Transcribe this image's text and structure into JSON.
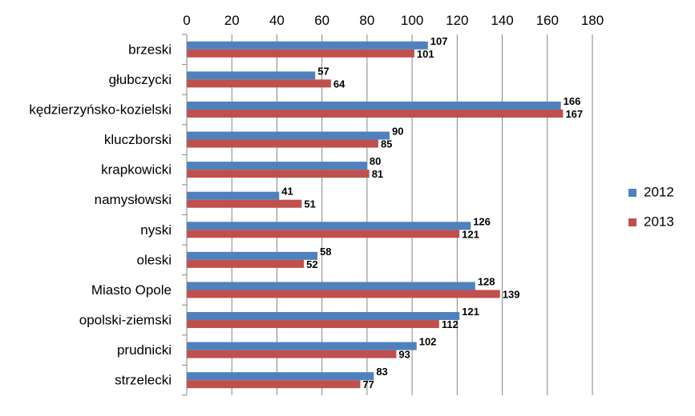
{
  "chart_data": {
    "type": "bar",
    "orientation": "horizontal",
    "categories": [
      "brzeski",
      "głubczycki",
      "kędzierzyńsko-kozielski",
      "kluczborski",
      "krapkowicki",
      "namysłowski",
      "nyski",
      "oleski",
      "Miasto Opole",
      "opolski-ziemski",
      "prudnicki",
      "strzelecki"
    ],
    "series": [
      {
        "name": "2012",
        "color": "#4F81BD",
        "values": [
          107,
          57,
          166,
          90,
          80,
          41,
          126,
          58,
          128,
          121,
          102,
          83
        ]
      },
      {
        "name": "2013",
        "color": "#C0504D",
        "values": [
          101,
          64,
          167,
          85,
          81,
          51,
          121,
          52,
          139,
          112,
          93,
          77
        ]
      }
    ],
    "xlim": [
      0,
      180
    ],
    "xticks": [
      0,
      20,
      40,
      60,
      80,
      100,
      120,
      140,
      160,
      180
    ],
    "x_axis_position": "top",
    "grid": true,
    "legend_position": "right",
    "data_labels": true
  }
}
